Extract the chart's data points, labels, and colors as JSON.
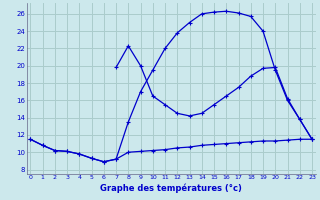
{
  "title": "Graphe des températures (°c)",
  "bg_color": "#cce8ec",
  "grid_color": "#aacccc",
  "line_color": "#0000cc",
  "x_ticks": [
    0,
    1,
    2,
    3,
    4,
    5,
    6,
    7,
    8,
    9,
    10,
    11,
    12,
    13,
    14,
    15,
    16,
    17,
    18,
    19,
    20,
    21,
    22,
    23
  ],
  "y_ticks": [
    8,
    10,
    12,
    14,
    16,
    18,
    20,
    22,
    24,
    26
  ],
  "xlim": [
    -0.3,
    23.3
  ],
  "ylim": [
    7.5,
    27.2
  ],
  "line1_x": [
    0,
    1,
    2,
    3,
    4,
    5,
    6,
    7,
    8,
    9,
    10,
    11,
    12,
    13,
    14,
    15,
    16,
    17,
    18,
    19,
    20,
    21,
    22,
    23
  ],
  "line1_y": [
    11.5,
    10.8,
    10.2,
    10.1,
    9.8,
    9.3,
    8.9,
    9.2,
    10.0,
    10.1,
    10.2,
    10.3,
    10.5,
    10.6,
    10.8,
    10.9,
    11.0,
    11.1,
    11.2,
    11.3,
    11.3,
    11.4,
    11.5,
    11.5
  ],
  "line2_x": [
    0,
    1,
    2,
    3,
    4,
    5,
    6,
    7,
    8,
    9,
    10,
    11,
    12,
    13,
    14,
    15,
    16,
    17,
    18,
    19,
    20,
    21,
    22,
    23
  ],
  "line2_y": [
    11.5,
    10.8,
    10.2,
    10.1,
    9.8,
    9.3,
    8.9,
    9.2,
    13.5,
    17.0,
    19.5,
    22.0,
    23.8,
    25.0,
    26.0,
    26.2,
    26.3,
    26.1,
    25.7,
    24.0,
    19.5,
    16.0,
    13.8,
    11.5
  ],
  "line3_x": [
    7,
    8,
    9,
    10,
    11,
    12,
    13,
    14,
    15,
    16,
    17,
    18,
    19,
    20,
    21,
    22,
    23
  ],
  "line3_y": [
    19.8,
    22.3,
    20.0,
    16.5,
    15.5,
    14.5,
    14.2,
    14.5,
    15.5,
    16.5,
    17.5,
    18.8,
    19.7,
    19.8,
    16.2,
    13.8,
    11.5
  ]
}
